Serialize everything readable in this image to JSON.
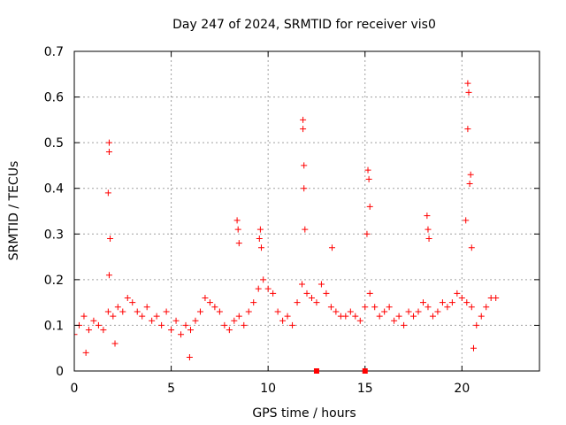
{
  "chart_data": {
    "type": "scatter",
    "title": "Day 247 of 2024, SRMTID for receiver vis0",
    "xlabel": "GPS time / hours",
    "ylabel": "SRMTID / TECUs",
    "xlim": [
      0,
      24
    ],
    "ylim": [
      0,
      0.7
    ],
    "x_ticks": [
      0,
      5,
      10,
      15,
      20
    ],
    "y_ticks": [
      0,
      0.1,
      0.2,
      0.3,
      0.4,
      0.5,
      0.6,
      0.7
    ],
    "grid": true,
    "legend": "none",
    "marker": "plus",
    "color": "#ff0000",
    "series": [
      {
        "name": "vis0",
        "points": [
          [
            0.0,
            0.08
          ],
          [
            0.25,
            0.1
          ],
          [
            0.5,
            0.12
          ],
          [
            0.75,
            0.09
          ],
          [
            1.0,
            0.11
          ],
          [
            1.25,
            0.1
          ],
          [
            1.5,
            0.09
          ],
          [
            1.75,
            0.13
          ],
          [
            2.0,
            0.12
          ],
          [
            2.25,
            0.14
          ],
          [
            2.5,
            0.13
          ],
          [
            2.75,
            0.16
          ],
          [
            3.0,
            0.15
          ],
          [
            3.25,
            0.13
          ],
          [
            3.5,
            0.12
          ],
          [
            3.75,
            0.14
          ],
          [
            4.0,
            0.11
          ],
          [
            4.25,
            0.12
          ],
          [
            4.5,
            0.1
          ],
          [
            4.75,
            0.13
          ],
          [
            5.0,
            0.09
          ],
          [
            5.25,
            0.11
          ],
          [
            5.5,
            0.08
          ],
          [
            5.75,
            0.1
          ],
          [
            6.0,
            0.09
          ],
          [
            6.25,
            0.11
          ],
          [
            6.5,
            0.13
          ],
          [
            6.75,
            0.16
          ],
          [
            7.0,
            0.15
          ],
          [
            7.25,
            0.14
          ],
          [
            7.5,
            0.13
          ],
          [
            7.75,
            0.1
          ],
          [
            8.0,
            0.09
          ],
          [
            8.25,
            0.11
          ],
          [
            8.5,
            0.12
          ],
          [
            8.75,
            0.1
          ],
          [
            9.0,
            0.13
          ],
          [
            9.25,
            0.15
          ],
          [
            9.5,
            0.18
          ],
          [
            9.75,
            0.2
          ],
          [
            10.0,
            0.18
          ],
          [
            10.25,
            0.17
          ],
          [
            10.5,
            0.13
          ],
          [
            10.75,
            0.11
          ],
          [
            11.0,
            0.12
          ],
          [
            11.25,
            0.1
          ],
          [
            11.5,
            0.15
          ],
          [
            11.75,
            0.19
          ],
          [
            12.0,
            0.17
          ],
          [
            12.25,
            0.16
          ],
          [
            12.5,
            0.15
          ],
          [
            12.75,
            0.19
          ],
          [
            13.0,
            0.17
          ],
          [
            13.25,
            0.14
          ],
          [
            13.5,
            0.13
          ],
          [
            13.75,
            0.12
          ],
          [
            14.0,
            0.12
          ],
          [
            14.25,
            0.13
          ],
          [
            14.5,
            0.12
          ],
          [
            14.75,
            0.11
          ],
          [
            15.0,
            0.14
          ],
          [
            15.25,
            0.17
          ],
          [
            15.5,
            0.14
          ],
          [
            15.75,
            0.12
          ],
          [
            16.0,
            0.13
          ],
          [
            16.25,
            0.14
          ],
          [
            16.5,
            0.11
          ],
          [
            16.75,
            0.12
          ],
          [
            17.0,
            0.1
          ],
          [
            17.25,
            0.13
          ],
          [
            17.5,
            0.12
          ],
          [
            17.75,
            0.13
          ],
          [
            18.0,
            0.15
          ],
          [
            18.25,
            0.14
          ],
          [
            18.5,
            0.12
          ],
          [
            18.75,
            0.13
          ],
          [
            19.0,
            0.15
          ],
          [
            19.25,
            0.14
          ],
          [
            19.5,
            0.15
          ],
          [
            19.75,
            0.17
          ],
          [
            20.0,
            0.16
          ],
          [
            20.25,
            0.15
          ],
          [
            20.5,
            0.14
          ],
          [
            20.75,
            0.1
          ],
          [
            21.0,
            0.12
          ],
          [
            21.25,
            0.14
          ],
          [
            21.5,
            0.16
          ],
          [
            21.75,
            0.16
          ],
          [
            1.8,
            0.5
          ],
          [
            1.8,
            0.48
          ],
          [
            1.75,
            0.39
          ],
          [
            1.85,
            0.29
          ],
          [
            1.8,
            0.21
          ],
          [
            8.4,
            0.33
          ],
          [
            8.45,
            0.31
          ],
          [
            8.5,
            0.28
          ],
          [
            9.6,
            0.31
          ],
          [
            9.55,
            0.29
          ],
          [
            9.65,
            0.27
          ],
          [
            11.8,
            0.55
          ],
          [
            11.8,
            0.53
          ],
          [
            11.85,
            0.45
          ],
          [
            11.85,
            0.4
          ],
          [
            11.9,
            0.31
          ],
          [
            13.3,
            0.27
          ],
          [
            15.15,
            0.44
          ],
          [
            15.2,
            0.42
          ],
          [
            15.25,
            0.36
          ],
          [
            15.1,
            0.3
          ],
          [
            18.2,
            0.34
          ],
          [
            18.25,
            0.31
          ],
          [
            18.3,
            0.29
          ],
          [
            20.3,
            0.63
          ],
          [
            20.35,
            0.61
          ],
          [
            20.3,
            0.53
          ],
          [
            20.45,
            0.43
          ],
          [
            20.4,
            0.41
          ],
          [
            20.2,
            0.33
          ],
          [
            20.5,
            0.27
          ],
          [
            20.6,
            0.05
          ],
          [
            0.6,
            0.04
          ],
          [
            5.95,
            0.03
          ],
          [
            2.1,
            0.06
          ]
        ]
      }
    ],
    "out_of_range_marks": [
      {
        "x": 12.5,
        "y": 0
      },
      {
        "x": 15.0,
        "y": 0
      }
    ]
  }
}
